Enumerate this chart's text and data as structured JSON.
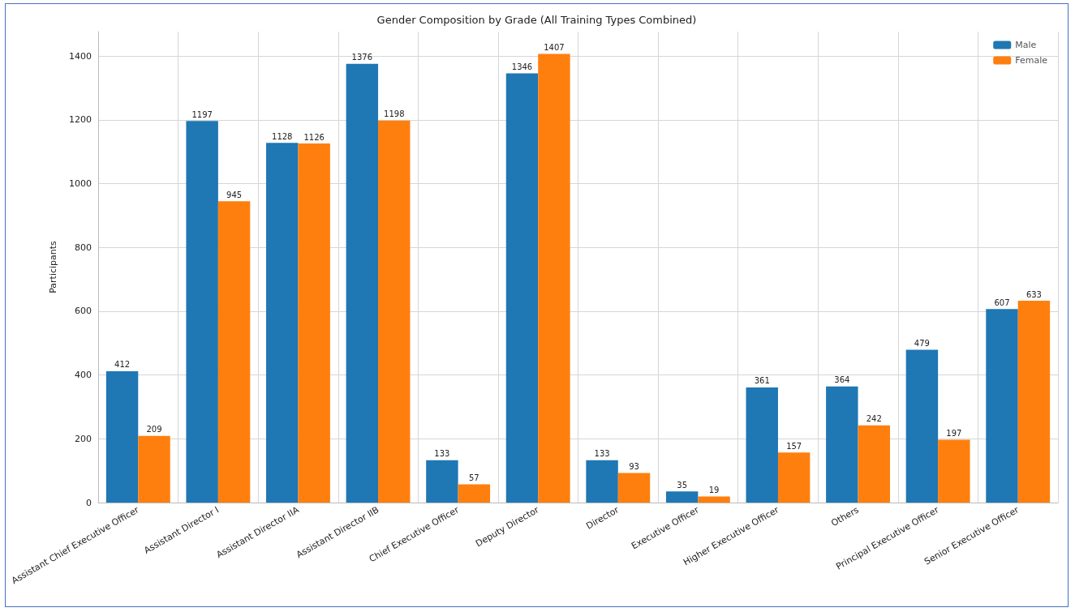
{
  "chart_data": {
    "type": "bar",
    "title": "Gender Composition by Grade (All Training Types Combined)",
    "ylabel": "Participants",
    "categories": [
      "Assistant Chief Executive Officer",
      "Assistant Director I",
      "Assistant Director IIA",
      "Assistant Director IIB",
      "Chief Executive Officer",
      "Deputy Director",
      "Director",
      "Executive Officer",
      "Higher Executive Officer",
      "Others",
      "Principal Executive Officer",
      "Senior Executive Officer"
    ],
    "series": [
      {
        "name": "Male",
        "color": "#1f77b4",
        "values": [
          412,
          1197,
          1128,
          1376,
          133,
          1346,
          133,
          35,
          361,
          364,
          479,
          607
        ]
      },
      {
        "name": "Female",
        "color": "#ff7f0e",
        "values": [
          209,
          945,
          1126,
          1198,
          57,
          1407,
          93,
          19,
          157,
          242,
          197,
          633
        ]
      }
    ],
    "ylim": [
      0,
      1477
    ],
    "yticks": [
      0,
      200,
      400,
      600,
      800,
      1000,
      1200,
      1400
    ],
    "grid": true,
    "legend": "top right",
    "data_labels": true
  }
}
